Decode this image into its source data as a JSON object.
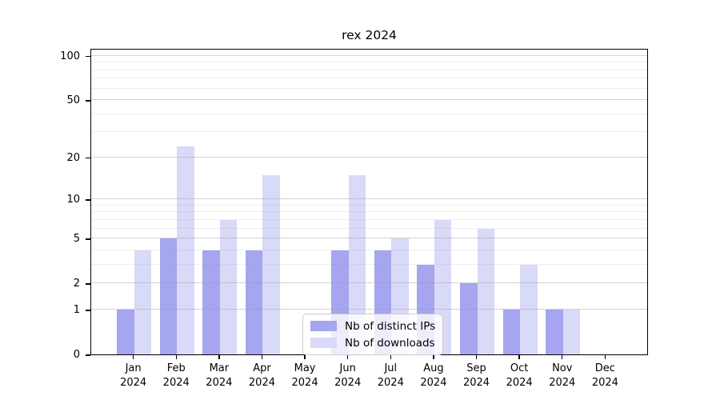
{
  "chart_data": {
    "type": "bar",
    "title": "rex 2024",
    "categories": [
      "Jan",
      "Feb",
      "Mar",
      "Apr",
      "May",
      "Jun",
      "Jul",
      "Aug",
      "Sep",
      "Oct",
      "Nov",
      "Dec"
    ],
    "tick_year_line": "2024",
    "series": [
      {
        "name": "Nb of distinct IPs",
        "color": "#a5a5f0",
        "values": [
          1,
          5,
          4,
          4,
          0,
          4,
          4,
          3,
          2,
          1,
          1,
          0
        ]
      },
      {
        "name": "Nb of downloads",
        "color": "#d9d9f8",
        "values": [
          4,
          24,
          7,
          15,
          0,
          15,
          5,
          7,
          6,
          3,
          1,
          0
        ]
      }
    ],
    "yscale": "log1p",
    "ylim": [
      0,
      113
    ],
    "y_major_ticks": [
      0,
      1,
      2,
      5,
      10,
      20,
      50,
      100
    ],
    "y_minor_ticks": [
      3,
      4,
      6,
      7,
      8,
      9,
      30,
      40,
      60,
      70,
      80,
      90
    ],
    "grid": "both",
    "legend_position": "lower-center"
  },
  "colors": {
    "major_grid": "rgba(160,160,160,0.45)",
    "minor_grid": "rgba(160,160,160,0.18)",
    "spine": "#000000",
    "legend_border": "#cccccc",
    "background": "#ffffff",
    "text": "#000000"
  }
}
